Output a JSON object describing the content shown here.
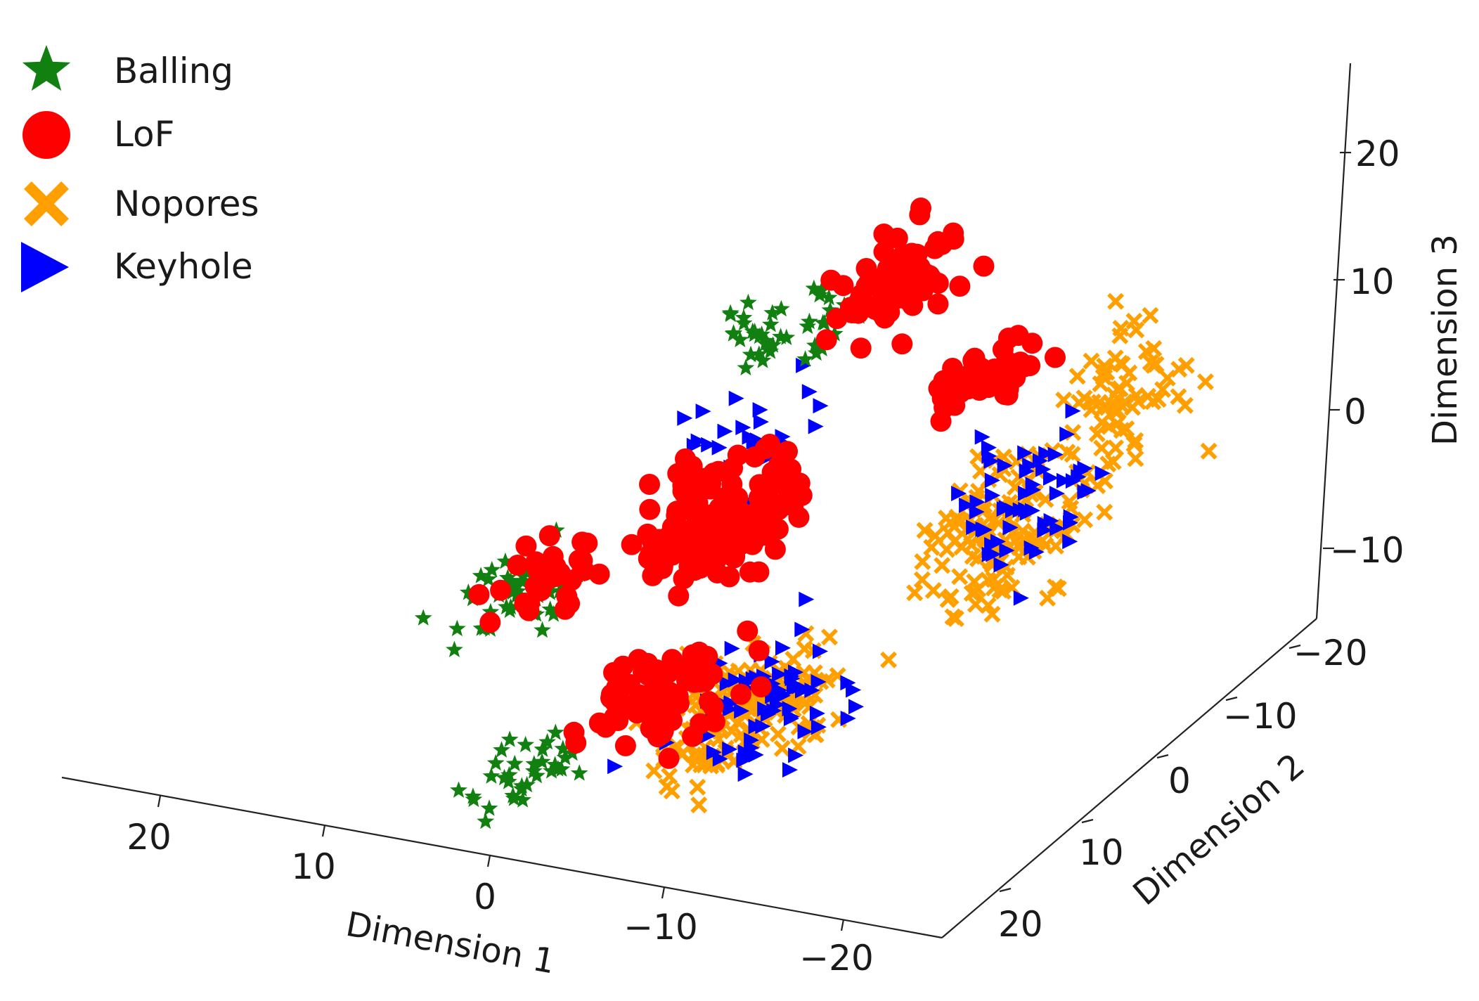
{
  "chart_data": {
    "type": "scatter",
    "projection": "3d",
    "title": "",
    "xlabel": "Dimension 1",
    "ylabel": "Dimension 2",
    "zlabel": "Dimension 3",
    "xlim": [
      -25,
      25
    ],
    "ylim": [
      -25,
      25
    ],
    "zlim": [
      -15,
      25
    ],
    "x_ticks": [
      "20",
      "10",
      "0",
      "−10",
      "−20"
    ],
    "x_tick_values": [
      20,
      10,
      0,
      -10,
      -20
    ],
    "y_ticks": [
      "−20",
      "−10",
      "0",
      "10",
      "20"
    ],
    "y_tick_values": [
      -20,
      -10,
      0,
      10,
      20
    ],
    "z_ticks": [
      "20",
      "10",
      "0",
      "−10"
    ],
    "z_tick_values": [
      20,
      10,
      0,
      -10
    ],
    "grid": false,
    "legend_position": "top-left",
    "series": [
      {
        "name": "Balling",
        "marker": "star",
        "color": "#118011",
        "clusters": [
          {
            "x": 5,
            "y": -15,
            "z": 15,
            "spread": [
              4,
              3,
              3
            ],
            "count": 45
          },
          {
            "x": 14,
            "y": 0,
            "z": 4,
            "spread": [
              4,
              3,
              2.5
            ],
            "count": 55
          },
          {
            "x": 9,
            "y": 10,
            "z": -6,
            "spread": [
              3,
              3,
              2.5
            ],
            "count": 35
          }
        ]
      },
      {
        "name": "LoF",
        "marker": "circle",
        "color": "#ff0000",
        "clusters": [
          {
            "x": 0,
            "y": -20,
            "z": 15,
            "spread": [
              3,
              3,
              3
            ],
            "count": 70
          },
          {
            "x": 4,
            "y": -5,
            "z": 5,
            "spread": [
              4,
              4,
              4
            ],
            "count": 150
          },
          {
            "x": 3,
            "y": 5,
            "z": -4,
            "spread": [
              4,
              3,
              3
            ],
            "count": 80
          },
          {
            "x": -7,
            "y": -18,
            "z": 7,
            "spread": [
              3,
              2,
              2
            ],
            "count": 45
          },
          {
            "x": 13,
            "y": -2,
            "z": 4,
            "spread": [
              3,
              2.5,
              2.5
            ],
            "count": 35
          }
        ]
      },
      {
        "name": "Nopores",
        "marker": "x",
        "color": "#ffa000",
        "clusters": [
          {
            "x": -5,
            "y": 10,
            "z": -5,
            "spread": [
              5,
              4,
              4
            ],
            "count": 160
          },
          {
            "x": -14,
            "y": -5,
            "z": 0,
            "spread": [
              4,
              4,
              5
            ],
            "count": 140
          },
          {
            "x": -16,
            "y": -17,
            "z": 5,
            "spread": [
              3,
              3,
              5
            ],
            "count": 70
          }
        ]
      },
      {
        "name": "Keyhole",
        "marker": "triangle-right",
        "color": "#0000ff",
        "clusters": [
          {
            "x": -5,
            "y": 8,
            "z": -5,
            "spread": [
              5,
              4,
              4
            ],
            "count": 80
          },
          {
            "x": -14,
            "y": -7,
            "z": 1,
            "spread": [
              4,
              4,
              5
            ],
            "count": 60
          },
          {
            "x": 4,
            "y": -10,
            "z": 9,
            "spread": [
              5,
              4,
              4
            ],
            "count": 30
          }
        ]
      }
    ]
  }
}
